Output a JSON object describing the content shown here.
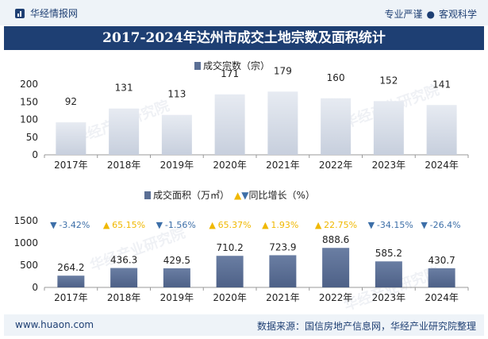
{
  "header": {
    "brand": "华经情报网",
    "tagline_left": "专业严谨",
    "tagline_right": "客观科学"
  },
  "title": "2017-2024年达州市成交土地宗数及面积统计",
  "footer": {
    "website": "www.huaon.com",
    "source": "数据来源：国信房地产信息网，华经产业研究院整理"
  },
  "watermark": "华经产业研究院",
  "colors": {
    "bar_top": "#dfe4ec",
    "bar_bottom": "#5b6f95",
    "up": "#f0b800",
    "down": "#3d6fa8",
    "brand": "#1e3f73"
  },
  "chart_data": [
    {
      "type": "bar",
      "title": "成交宗数（宗）",
      "categories": [
        "2017年",
        "2018年",
        "2019年",
        "2020年",
        "2021年",
        "2022年",
        "2023年",
        "2024年"
      ],
      "values": [
        92,
        131,
        113,
        171,
        179,
        160,
        152,
        141
      ],
      "ylim": [
        0,
        200
      ],
      "yticks": [
        0,
        50,
        100,
        150,
        200
      ]
    },
    {
      "type": "bar",
      "legend_area": "成交面积（万㎡）",
      "legend_growth": "同比增长（%）",
      "categories": [
        "2017年",
        "2018年",
        "2019年",
        "2020年",
        "2021年",
        "2022年",
        "2023年",
        "2024年"
      ],
      "values": [
        264.2,
        436.3,
        429.5,
        710.2,
        723.9,
        888.6,
        585.2,
        430.7
      ],
      "value_labels": [
        "264.2",
        "436.3",
        "429.5",
        "710.2",
        "723.9",
        "888.6",
        "585.2",
        "430.7"
      ],
      "growth": [
        -3.42,
        65.15,
        -1.56,
        65.37,
        1.93,
        22.75,
        -34.15,
        -26.4
      ],
      "growth_labels": [
        "-3.42%",
        "65.15%",
        "-1.56%",
        "65.37%",
        "1.93%",
        "22.75%",
        "-34.15%",
        "-26.4%"
      ],
      "ylim": [
        0,
        1500
      ],
      "yticks": [
        0,
        500,
        1000,
        1500
      ]
    }
  ]
}
